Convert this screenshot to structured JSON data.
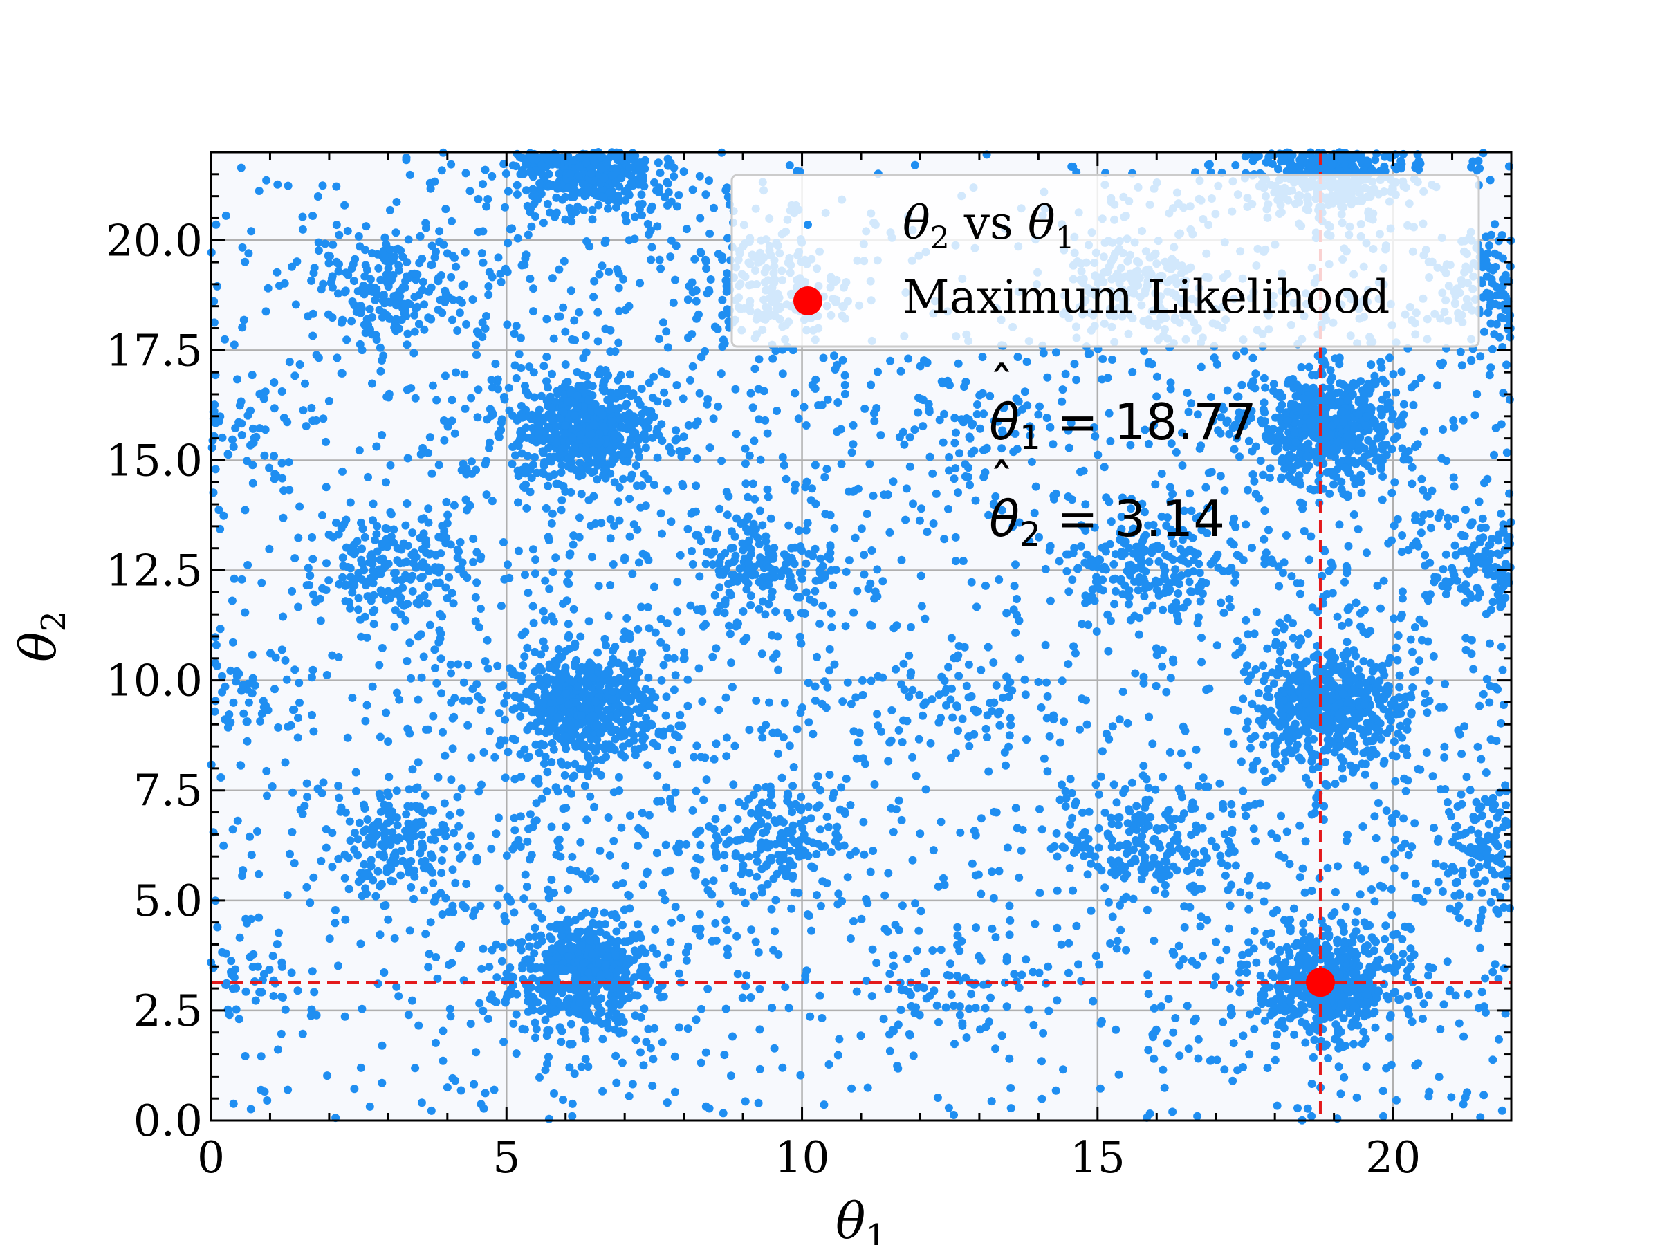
{
  "chart_data": {
    "type": "scatter",
    "xlabel": "θ₁",
    "ylabel": "θ₂",
    "xlim": [
      0,
      22
    ],
    "ylim": [
      0,
      22
    ],
    "x_ticks": [
      0,
      5,
      10,
      15,
      20
    ],
    "y_ticks": [
      0.0,
      2.5,
      5.0,
      7.5,
      10.0,
      12.5,
      15.0,
      17.5,
      20.0
    ],
    "x_tick_labels": [
      "0",
      "5",
      "10",
      "15",
      "20"
    ],
    "y_tick_labels": [
      "0.0",
      "2.5",
      "5.0",
      "7.5",
      "10.0",
      "12.5",
      "15.0",
      "17.5",
      "20.0"
    ],
    "grid": true,
    "legend_position": "top-right",
    "series": [
      {
        "name": "θ₂ vs θ₁",
        "kind": "scatter",
        "color": "#1f8ef1",
        "clusters": [
          {
            "center": [
              6.3,
              3.3
            ],
            "density": "high"
          },
          {
            "center": [
              6.3,
              9.4
            ],
            "density": "high"
          },
          {
            "center": [
              6.3,
              15.7
            ],
            "density": "high"
          },
          {
            "center": [
              6.3,
              21.8
            ],
            "density": "high"
          },
          {
            "center": [
              18.9,
              3.1
            ],
            "density": "high"
          },
          {
            "center": [
              18.9,
              9.4
            ],
            "density": "high"
          },
          {
            "center": [
              18.9,
              15.7
            ],
            "density": "high"
          },
          {
            "center": [
              18.9,
              21.8
            ],
            "density": "high"
          },
          {
            "center": [
              3.1,
              6.3
            ],
            "density": "medium"
          },
          {
            "center": [
              3.1,
              12.6
            ],
            "density": "medium"
          },
          {
            "center": [
              3.1,
              18.9
            ],
            "density": "medium"
          },
          {
            "center": [
              9.4,
              6.3
            ],
            "density": "medium"
          },
          {
            "center": [
              9.4,
              12.6
            ],
            "density": "medium"
          },
          {
            "center": [
              9.4,
              18.9
            ],
            "density": "medium"
          },
          {
            "center": [
              15.7,
              6.3
            ],
            "density": "medium"
          },
          {
            "center": [
              15.7,
              12.6
            ],
            "density": "medium"
          },
          {
            "center": [
              15.7,
              18.9
            ],
            "density": "medium"
          },
          {
            "center": [
              21.9,
              6.3
            ],
            "density": "medium"
          },
          {
            "center": [
              21.9,
              12.6
            ],
            "density": "medium"
          },
          {
            "center": [
              21.9,
              18.9
            ],
            "density": "medium"
          },
          {
            "center": [
              12.6,
              3.1
            ],
            "density": "low"
          },
          {
            "center": [
              12.6,
              9.4
            ],
            "density": "low"
          },
          {
            "center": [
              12.6,
              15.7
            ],
            "density": "low"
          },
          {
            "center": [
              0.3,
              3.1
            ],
            "density": "low"
          },
          {
            "center": [
              0.3,
              9.4
            ],
            "density": "low"
          },
          {
            "center": [
              0.3,
              15.7
            ],
            "density": "low"
          }
        ]
      },
      {
        "name": "Maximum Likelihood",
        "kind": "point",
        "color": "#ff0000",
        "x": 18.77,
        "y": 3.14
      }
    ],
    "reference_lines": [
      {
        "orientation": "vertical",
        "value": 18.77,
        "color": "#e31a1c",
        "style": "dashed"
      },
      {
        "orientation": "horizontal",
        "value": 3.14,
        "color": "#e31a1c",
        "style": "dashed"
      }
    ],
    "annotations": [
      {
        "text": "θ̂₁ = 18.77",
        "x": 13.1,
        "y": 15.3
      },
      {
        "text": "θ̂₂ = 3.14",
        "x": 13.1,
        "y": 13.0
      }
    ],
    "legend": [
      "θ₂ vs θ₁",
      "Maximum Likelihood"
    ]
  }
}
